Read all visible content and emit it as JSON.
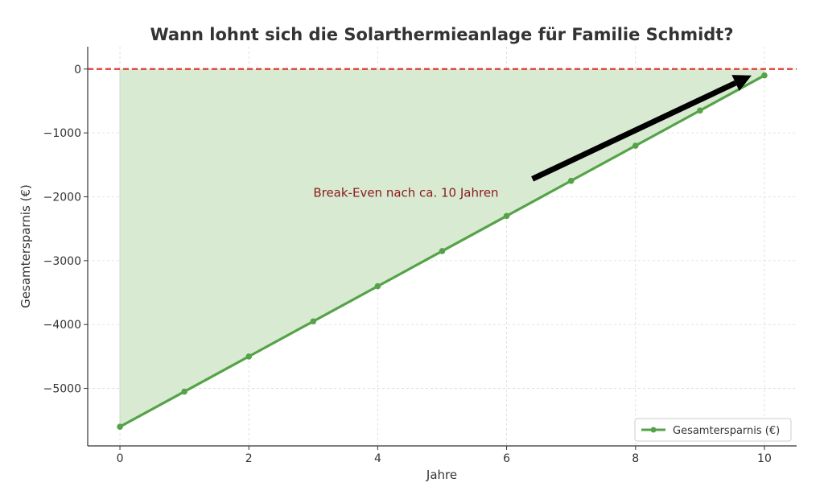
{
  "chart_data": {
    "type": "line",
    "title": "Wann lohnt sich die Solarthermieanlage für Familie Schmidt?",
    "xlabel": "Jahre",
    "ylabel": "Gesamtersparnis (€)",
    "xlim": [
      -0.5,
      10.5
    ],
    "ylim": [
      -5900,
      350
    ],
    "xticks": [
      0,
      2,
      4,
      6,
      8,
      10
    ],
    "xtick_labels": [
      "0",
      "2",
      "4",
      "6",
      "8",
      "10"
    ],
    "yticks": [
      0,
      -1000,
      -2000,
      -3000,
      -4000,
      -5000
    ],
    "ytick_labels": [
      "0",
      "−1000",
      "−2000",
      "−3000",
      "−4000",
      "−5000"
    ],
    "grid": true,
    "legend_position": "bottom-right",
    "series": [
      {
        "name": "Gesamtersparnis (€)",
        "color": "#55a348",
        "x": [
          0,
          1,
          2,
          3,
          4,
          5,
          6,
          7,
          8,
          9,
          10
        ],
        "y": [
          -5600,
          -5050,
          -4500,
          -3950,
          -3400,
          -2850,
          -2300,
          -1750,
          -1200,
          -650,
          -100
        ]
      }
    ],
    "fill_color": "#d9ead3",
    "reference_line": {
      "y": 0,
      "color": "#e03c31",
      "style": "dashed"
    },
    "annotation": {
      "text": "Break-Even nach ca. 10 Jahren",
      "color": "#8b1a1a",
      "text_x": 3,
      "text_y": -2000,
      "arrow_from_x": 6.4,
      "arrow_from_y": -1720,
      "arrow_to_x": 9.8,
      "arrow_to_y": -100
    }
  }
}
